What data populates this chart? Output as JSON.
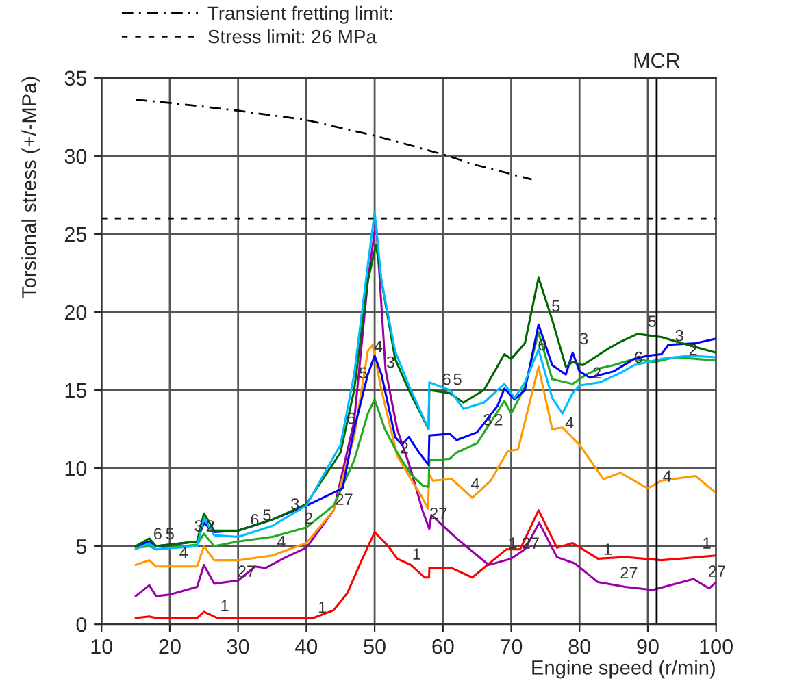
{
  "chart_data": {
    "type": "line",
    "xlabel": "Engine speed (r/min)",
    "ylabel": "Torsional stress (+/-MPa)",
    "xlim": [
      10,
      100
    ],
    "xticks": [
      10,
      20,
      30,
      40,
      50,
      60,
      70,
      80,
      90,
      100
    ],
    "ylim": [
      0,
      35
    ],
    "yticks": [
      0,
      5,
      10,
      15,
      20,
      25,
      30,
      35
    ],
    "grid": true,
    "legend": "top left",
    "marker": "none",
    "series": [
      {
        "color": "#ff0000",
        "x": [
          15,
          17,
          18,
          24,
          25,
          27,
          35,
          41,
          44,
          46,
          48,
          50,
          52,
          53.3,
          55.3,
          57.3,
          57.97,
          58,
          61.3,
          64.3,
          69.3,
          71.3,
          74,
          76.7,
          79,
          82.7,
          86.7,
          92,
          100
        ],
        "values": [
          0.4,
          0.5,
          0.4,
          0.4,
          0.8,
          0.4,
          0.4,
          0.4,
          0.9,
          2,
          4,
          5.9,
          5,
          4.2,
          3.8,
          3.0,
          3.0,
          3.6,
          3.6,
          3.0,
          4.8,
          4.8,
          7.3,
          4.9,
          5.2,
          4.2,
          4.3,
          4.1,
          4.4
        ]
      },
      {
        "color": "#9900aa",
        "x": [
          15,
          17,
          18,
          20,
          24,
          25,
          26.5,
          30,
          32.5,
          34,
          37,
          40,
          44,
          47,
          49,
          50.2,
          51.6,
          53.3,
          55.3,
          57,
          58,
          58.3,
          62,
          66.7,
          70,
          72,
          74.1,
          76.7,
          79.3,
          82.7,
          86.7,
          90.7,
          96.7,
          99,
          100
        ],
        "values": [
          1.8,
          2.5,
          1.8,
          1.9,
          2.4,
          3.8,
          2.6,
          2.8,
          3.7,
          3.6,
          4.3,
          4.9,
          7.3,
          13,
          22,
          25.8,
          16.3,
          12.5,
          9.9,
          7.3,
          6.1,
          7.0,
          5.5,
          3.8,
          4.2,
          4.8,
          6.5,
          4.3,
          3.9,
          2.7,
          2.4,
          2.2,
          2.9,
          2.3,
          2.7
        ]
      },
      {
        "color": "#ff9900",
        "x": [
          15,
          17,
          18,
          24,
          25,
          26.5,
          30,
          35,
          40,
          44,
          47,
          49,
          49.7,
          51,
          53.3,
          55.3,
          57,
          57.8,
          58,
          58.5,
          61.3,
          64.3,
          67,
          69.5,
          71,
          74,
          76,
          77.5,
          80,
          83.5,
          86,
          90,
          92,
          97,
          100
        ],
        "values": [
          3.8,
          4.1,
          3.7,
          3.7,
          5.0,
          4.1,
          4.1,
          4.4,
          5.2,
          7.3,
          12,
          17.5,
          17.9,
          15,
          10.8,
          9.3,
          8.1,
          7.4,
          9.6,
          9.2,
          9.3,
          8.1,
          9.2,
          11.1,
          11.2,
          16.5,
          12.5,
          12.6,
          11.5,
          9.3,
          9.7,
          8.7,
          9.2,
          9.5,
          8.4
        ]
      },
      {
        "color": "#22aa22",
        "x": [
          15,
          17,
          18,
          24,
          25,
          26.5,
          30,
          35,
          40,
          44,
          47,
          49,
          50,
          51.5,
          53.3,
          55.3,
          57,
          57.9,
          58,
          61,
          62,
          65,
          69,
          70,
          72,
          74,
          76,
          79,
          81,
          83,
          85,
          88,
          91,
          94,
          100
        ],
        "values": [
          4.9,
          5.0,
          4.8,
          5.1,
          5.8,
          5.0,
          5.3,
          5.6,
          6.2,
          7.6,
          10.5,
          13.5,
          14.4,
          12.5,
          11.0,
          9.6,
          8.9,
          8.8,
          10.5,
          10.6,
          11.0,
          11.6,
          14.3,
          13.5,
          15.2,
          18.7,
          15.7,
          15.4,
          16,
          16.4,
          16.6,
          17.0,
          16.8,
          17.1,
          16.9
        ]
      },
      {
        "color": "#0000ff",
        "x": [
          15,
          17,
          18,
          24,
          25,
          26.5,
          30,
          35,
          40,
          45.3,
          47,
          49,
          50,
          51,
          53,
          54,
          55,
          56.5,
          57.9,
          58,
          61,
          62,
          65,
          68,
          69,
          70.5,
          72,
          74,
          76,
          78,
          79,
          80,
          81.5,
          85,
          88,
          90,
          92,
          93,
          97,
          100
        ],
        "values": [
          5.0,
          5.3,
          5.0,
          5.3,
          6.5,
          5.9,
          6.0,
          6.7,
          7.6,
          8.7,
          12.5,
          16,
          17.2,
          16,
          12,
          11.5,
          12.0,
          11.0,
          10.2,
          12.1,
          12.2,
          11.8,
          12.3,
          14.0,
          15.1,
          14.4,
          15.0,
          19.2,
          16.6,
          16.0,
          17.4,
          16.2,
          15.8,
          16.2,
          17.0,
          17.2,
          17.3,
          17.9,
          18.0,
          18.3
        ]
      },
      {
        "color": "#006600",
        "x": [
          15,
          17,
          18,
          24,
          25,
          26.5,
          30,
          35,
          40,
          45,
          47,
          49,
          50.2,
          51,
          53,
          55,
          57.9,
          58,
          61,
          63,
          66,
          69,
          70,
          72,
          74,
          76,
          78,
          79,
          80.5,
          84,
          86,
          88.5,
          92,
          95,
          100
        ],
        "values": [
          5.0,
          5.5,
          5.0,
          5.3,
          7.1,
          6.0,
          6.0,
          6.7,
          7.7,
          11,
          15,
          22,
          24.3,
          22,
          17,
          15.0,
          12.5,
          15.0,
          14.8,
          14.2,
          15.0,
          17.3,
          17.0,
          18.0,
          22.2,
          19.5,
          16.5,
          16.8,
          16.6,
          17.6,
          18.1,
          18.6,
          18.4,
          18.0,
          17.4
        ]
      },
      {
        "color": "#00bbff",
        "x": [
          15,
          17,
          18,
          24,
          25,
          26.5,
          30,
          35,
          40,
          45,
          47,
          49,
          50,
          51,
          53,
          55,
          57.9,
          58,
          61,
          63,
          66,
          69,
          70.5,
          72,
          74,
          76,
          77.5,
          79,
          80,
          83,
          86,
          88,
          92,
          96,
          100
        ],
        "values": [
          4.8,
          5.2,
          4.8,
          5.0,
          6.8,
          5.7,
          5.6,
          6.3,
          7.6,
          11.5,
          16,
          23,
          26.4,
          22,
          17.5,
          15.3,
          12.5,
          15.5,
          15.0,
          13.8,
          14.2,
          15.4,
          14.5,
          15.5,
          17.6,
          14.5,
          13.5,
          14.8,
          15.3,
          15.5,
          16.1,
          16.6,
          17.0,
          17.2,
          17.1
        ]
      },
      {
        "name": "Transient fretting limit:",
        "color": "#000000",
        "line_style": "dashdot",
        "x": [
          15,
          20,
          30,
          40,
          50,
          60,
          65,
          73
        ],
        "values": [
          33.6,
          33.4,
          32.9,
          32.3,
          31.3,
          30.1,
          29.4,
          28.5
        ]
      }
    ],
    "ref_lines": [
      {
        "axis": "y",
        "value": 26,
        "label": "Stress limit: 26 MPa",
        "color": "#000000",
        "line_style": "dashed"
      },
      {
        "axis": "x",
        "value": 91.3,
        "label": "MCR",
        "color": "#000000",
        "line_style": "solid"
      }
    ],
    "annotations": [
      {
        "text": "1",
        "x": 27.2,
        "y": 0.5
      },
      {
        "text": "1",
        "x": 41.5,
        "y": 0.4
      },
      {
        "text": "1",
        "x": 55.3,
        "y": 3.8
      },
      {
        "text": "1",
        "x": 69.4,
        "y": 4.5
      },
      {
        "text": "1",
        "x": 83.3,
        "y": 4.1
      },
      {
        "text": "1",
        "x": 97.8,
        "y": 4.5
      },
      {
        "text": "27",
        "x": 30.4,
        "y": 2.7
      },
      {
        "text": "27",
        "x": 44.7,
        "y": 7.3
      },
      {
        "text": "27",
        "x": 58.5,
        "y": 6.4
      },
      {
        "text": "27",
        "x": 72,
        "y": 4.5
      },
      {
        "text": "27",
        "x": 86.4,
        "y": 2.6
      },
      {
        "text": "27",
        "x": 99.3,
        "y": 2.7
      },
      {
        "text": "4",
        "x": 21.2,
        "y": 3.9
      },
      {
        "text": "4",
        "x": 35.5,
        "y": 4.6
      },
      {
        "text": "4",
        "x": 49.7,
        "y": 17.1
      },
      {
        "text": "4",
        "x": 63.9,
        "y": 8.3
      },
      {
        "text": "4",
        "x": 77.7,
        "y": 12.2
      },
      {
        "text": "4",
        "x": 92,
        "y": 8.8
      },
      {
        "text": "2",
        "x": 25.1,
        "y": 5.6
      },
      {
        "text": "2",
        "x": 39.5,
        "y": 6.1
      },
      {
        "text": "2",
        "x": 53.5,
        "y": 10.6
      },
      {
        "text": "2",
        "x": 67.3,
        "y": 12.4
      },
      {
        "text": "2",
        "x": 81.7,
        "y": 15.4
      },
      {
        "text": "2",
        "x": 95.8,
        "y": 16.9
      },
      {
        "text": "3",
        "x": 23.4,
        "y": 5.6
      },
      {
        "text": "3",
        "x": 37.5,
        "y": 7.0
      },
      {
        "text": "3",
        "x": 51.5,
        "y": 16.1
      },
      {
        "text": "3",
        "x": 65.7,
        "y": 12.4
      },
      {
        "text": "3",
        "x": 79.8,
        "y": 17.6
      },
      {
        "text": "3",
        "x": 93.8,
        "y": 17.8
      },
      {
        "text": "5",
        "x": 19.2,
        "y": 5.1
      },
      {
        "text": "5",
        "x": 33.4,
        "y": 6.3
      },
      {
        "text": "5",
        "x": 47.5,
        "y": 15.4
      },
      {
        "text": "5",
        "x": 61.3,
        "y": 15.0
      },
      {
        "text": "5",
        "x": 75.7,
        "y": 19.7
      },
      {
        "text": "5",
        "x": 89.8,
        "y": 18.7
      },
      {
        "text": "6",
        "x": 17.4,
        "y": 5.1
      },
      {
        "text": "6",
        "x": 31.6,
        "y": 6.0
      },
      {
        "text": "6",
        "x": 45.7,
        "y": 12.5
      },
      {
        "text": "6",
        "x": 59.7,
        "y": 15.0
      },
      {
        "text": "6",
        "x": 73.7,
        "y": 17.2
      },
      {
        "text": "6",
        "x": 87.8,
        "y": 16.4
      }
    ]
  }
}
